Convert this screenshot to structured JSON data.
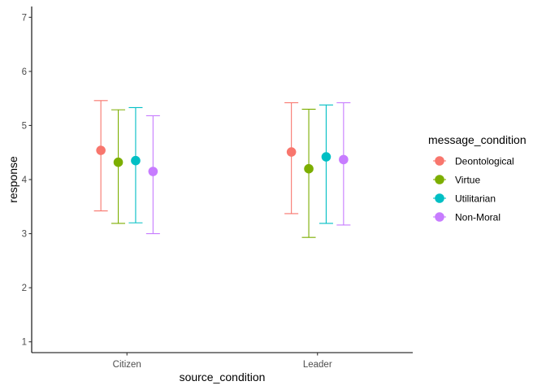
{
  "chart_data": {
    "type": "scatter",
    "title": "",
    "xlabel": "source_condition",
    "ylabel": "response",
    "categories": [
      "Citizen",
      "Leader"
    ],
    "ylim": [
      0.8,
      7.2
    ],
    "yticks": [
      "1",
      "2",
      "3",
      "4",
      "5",
      "6",
      "7"
    ],
    "grid": false,
    "legend": {
      "title": "message_condition",
      "placement": "right"
    },
    "series": [
      {
        "name": "Deontological",
        "color": "#F8766D",
        "values": [
          4.54,
          4.51
        ],
        "lower": [
          3.42,
          3.37
        ],
        "upper": [
          5.46,
          5.42
        ]
      },
      {
        "name": "Virtue",
        "color": "#7CAE00",
        "values": [
          4.32,
          4.2
        ],
        "lower": [
          3.19,
          2.93
        ],
        "upper": [
          5.29,
          5.3
        ]
      },
      {
        "name": "Utilitarian",
        "color": "#00BFC4",
        "values": [
          4.35,
          4.42
        ],
        "lower": [
          3.2,
          3.19
        ],
        "upper": [
          5.33,
          5.38
        ]
      },
      {
        "name": "Non-Moral",
        "color": "#C77CFF",
        "values": [
          4.15,
          4.37
        ],
        "lower": [
          3.0,
          3.16
        ],
        "upper": [
          5.18,
          5.42
        ]
      }
    ]
  }
}
